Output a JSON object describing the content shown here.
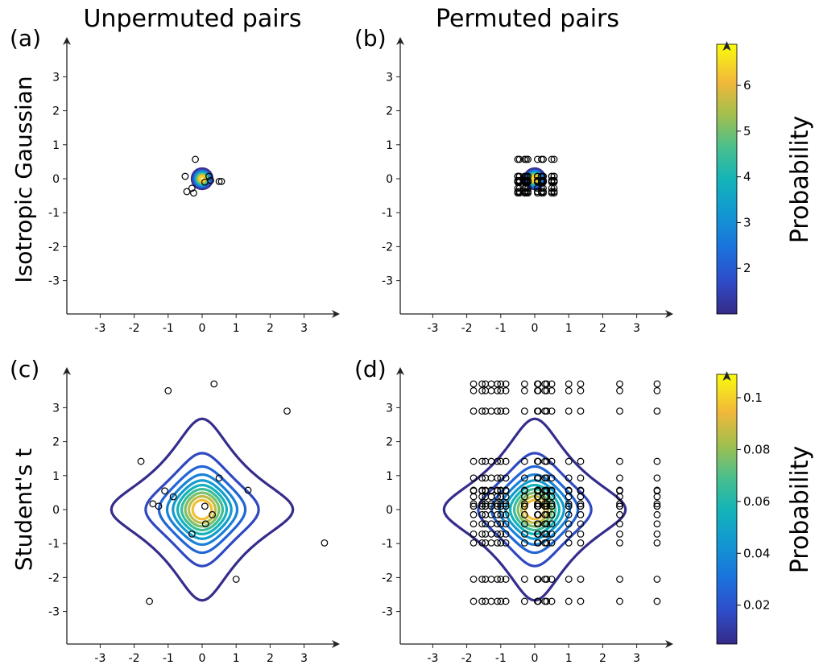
{
  "figure": {
    "col_titles": [
      "Unpermuted pairs",
      "Permuted pairs"
    ],
    "row_labels": [
      "Isotropic Gaussian",
      "Student's t"
    ],
    "colorbar_label": "Probability"
  },
  "chart_data": [
    {
      "type": "contour+scatter",
      "panel": "(a)",
      "distribution": "gaussian",
      "xlim": [
        -4,
        4
      ],
      "ylim": [
        -4,
        4
      ],
      "xticks": [
        -3,
        -2,
        -1,
        0,
        1,
        2,
        3
      ],
      "yticks": [
        -3,
        -2,
        -1,
        0,
        1,
        2,
        3
      ],
      "contour_levels": [
        1.0,
        1.6,
        2.2,
        2.8,
        3.4,
        4.0,
        4.6,
        5.2,
        5.8,
        6.4
      ],
      "points": [
        [
          -0.2,
          0.57
        ],
        [
          -0.5,
          0.07
        ],
        [
          -0.3,
          -0.28
        ],
        [
          -0.45,
          -0.38
        ],
        [
          -0.25,
          -0.42
        ],
        [
          0.08,
          -0.1
        ],
        [
          0.2,
          0.07
        ],
        [
          0.25,
          -0.05
        ],
        [
          0.5,
          -0.08
        ],
        [
          0.57,
          -0.08
        ]
      ]
    },
    {
      "type": "contour+scatter",
      "panel": "(b)",
      "distribution": "gaussian",
      "xlim": [
        -4,
        4
      ],
      "ylim": [
        -4,
        4
      ],
      "xticks": [
        -3,
        -2,
        -1,
        0,
        1,
        2,
        3
      ],
      "yticks": [
        -3,
        -2,
        -1,
        0,
        1,
        2,
        3
      ],
      "contour_levels": [
        1.0,
        1.6,
        2.2,
        2.8,
        3.4,
        4.0,
        4.6,
        5.2,
        5.8,
        6.4
      ],
      "grid_x": [
        -0.5,
        -0.45,
        -0.3,
        -0.25,
        -0.2,
        0.08,
        0.2,
        0.25,
        0.5,
        0.57
      ],
      "grid_y": [
        0.57,
        0.07,
        -0.28,
        -0.38,
        -0.42,
        -0.1,
        0.07,
        -0.05,
        -0.08,
        -0.08
      ]
    },
    {
      "type": "contour+scatter",
      "panel": "(c)",
      "distribution": "student-t",
      "xlim": [
        -4,
        4
      ],
      "ylim": [
        -4,
        4
      ],
      "xticks": [
        -3,
        -2,
        -1,
        0,
        1,
        2,
        3
      ],
      "yticks": [
        -3,
        -2,
        -1,
        0,
        1,
        2,
        3
      ],
      "contour_levels": [
        0.006,
        0.016,
        0.026,
        0.036,
        0.046,
        0.056,
        0.066,
        0.076,
        0.086,
        0.096
      ],
      "points": [
        [
          -1.0,
          3.5
        ],
        [
          0.35,
          3.7
        ],
        [
          2.5,
          2.9
        ],
        [
          -1.8,
          1.42
        ],
        [
          -1.1,
          0.55
        ],
        [
          0.5,
          0.93
        ],
        [
          1.35,
          0.57
        ],
        [
          -0.85,
          0.38
        ],
        [
          -1.45,
          0.17
        ],
        [
          -1.28,
          0.1
        ],
        [
          0.08,
          0.1
        ],
        [
          0.3,
          -0.15
        ],
        [
          0.1,
          -0.42
        ],
        [
          -0.3,
          -0.72
        ],
        [
          3.6,
          -0.98
        ],
        [
          1.0,
          -2.05
        ],
        [
          -1.55,
          -2.7
        ]
      ]
    },
    {
      "type": "contour+scatter",
      "panel": "(d)",
      "distribution": "student-t",
      "xlim": [
        -4,
        4
      ],
      "ylim": [
        -4,
        4
      ],
      "xticks": [
        -3,
        -2,
        -1,
        0,
        1,
        2,
        3
      ],
      "yticks": [
        -3,
        -2,
        -1,
        0,
        1,
        2,
        3
      ],
      "contour_levels": [
        0.006,
        0.016,
        0.026,
        0.036,
        0.046,
        0.056,
        0.066,
        0.076,
        0.086,
        0.096
      ],
      "grid_x": [
        -1.8,
        -1.55,
        -1.45,
        -1.28,
        -1.1,
        -1.0,
        -0.85,
        -0.3,
        0.08,
        0.1,
        0.3,
        0.35,
        0.5,
        1.0,
        1.35,
        2.5,
        3.6
      ],
      "grid_y": [
        3.7,
        3.5,
        2.9,
        1.42,
        0.93,
        0.57,
        0.55,
        0.38,
        0.17,
        0.1,
        0.1,
        -0.15,
        -0.42,
        -0.72,
        -0.98,
        -2.05,
        -2.7
      ]
    }
  ],
  "colorbars": [
    {
      "ticks": [
        "2",
        "3",
        "4",
        "5",
        "6"
      ],
      "tick_values": [
        2,
        3,
        4,
        5,
        6
      ],
      "range": [
        1.0,
        6.9
      ]
    },
    {
      "ticks": [
        "0.02",
        "0.04",
        "0.06",
        "0.08",
        "0.1"
      ],
      "tick_values": [
        0.02,
        0.04,
        0.06,
        0.08,
        0.1
      ],
      "range": [
        0.005,
        0.109
      ]
    }
  ]
}
